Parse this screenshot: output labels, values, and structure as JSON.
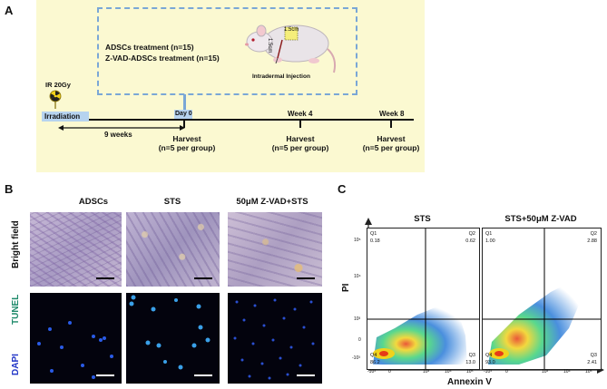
{
  "panels": {
    "a": "A",
    "b": "B",
    "c": "C"
  },
  "panel_a": {
    "treatment_line1": "ADSCs treatment (n=15)",
    "treatment_line2": "Z-VAD-ADSCs treatment (n=15)",
    "injection_label": "Intradermal Injection",
    "scale_label_1": "1.5cm",
    "scale_label_2": "1.5cm",
    "ir_dose": "IR 20Gy",
    "irradiation": "Irradiation",
    "duration": "9 weeks",
    "day0": "Day 0",
    "week4": "Week 4",
    "week8": "Week 8",
    "harvest_label": "Harvest",
    "harvest_n": "(n=5 per group)",
    "colors": {
      "panel_bg": "#fbf9d1",
      "dash_box": "#7aa7d6",
      "marker": "#2f5fa8"
    }
  },
  "panel_b": {
    "columns": [
      "ADSCs",
      "STS",
      "50μM Z-VAD+STS"
    ],
    "row_bright": "Bright field",
    "row_tunel": "TUNEL",
    "row_dapi": "DAPI",
    "colors": {
      "tunel": "#1f8a6b",
      "dapi": "#2337c7"
    }
  },
  "panel_c": {
    "plots": [
      {
        "title": "STS",
        "q1_label": "Q1",
        "q1_value": "0.18",
        "q2_label": "Q2",
        "q2_value": "0.62",
        "q3_label": "Q3",
        "q3_value": "13.0",
        "q4_label": "Q4",
        "q4_value": "86.2"
      },
      {
        "title": "STS+50μM Z-VAD",
        "q1_label": "Q1",
        "q1_value": "1.00",
        "q2_label": "Q2",
        "q2_value": "2.88",
        "q3_label": "Q3",
        "q3_value": "2.41",
        "q4_label": "Q4",
        "q4_value": "93.0"
      }
    ],
    "y_label": "PI",
    "x_label": "Annexin V",
    "y_ticks": [
      "10⁵",
      "10⁴",
      "10³",
      "0",
      "-10³"
    ],
    "x_ticks": [
      "-10³",
      "0",
      "10³",
      "10⁴",
      "10⁵"
    ]
  }
}
